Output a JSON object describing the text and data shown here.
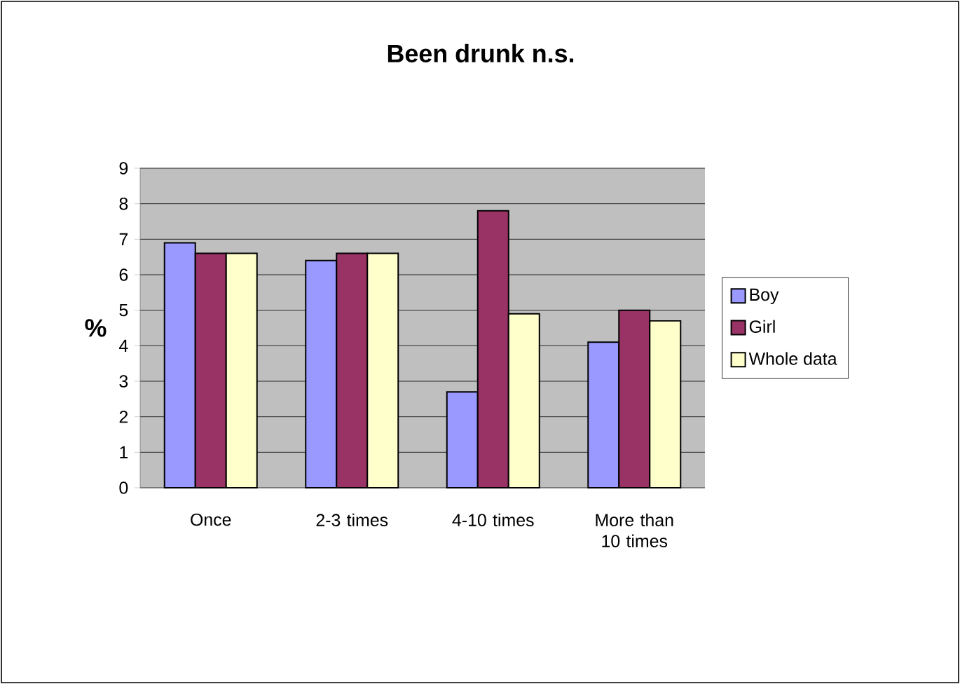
{
  "chart_data": {
    "type": "bar",
    "title": "Been drunk n.s.",
    "ylabel": "%",
    "categories": [
      "Once",
      "2-3 times",
      "4-10 times",
      "More than 10 times"
    ],
    "series": [
      {
        "name": "Boy",
        "color": "#9999ff",
        "values": [
          6.9,
          6.4,
          2.7,
          4.1
        ]
      },
      {
        "name": "Girl",
        "color": "#993366",
        "values": [
          6.6,
          6.6,
          7.8,
          5.0
        ]
      },
      {
        "name": "Whole data",
        "color": "#ffffcc",
        "values": [
          6.6,
          6.6,
          4.9,
          4.7
        ]
      }
    ],
    "ylim": [
      0,
      9
    ],
    "yticks": [
      0,
      1,
      2,
      3,
      4,
      5,
      6,
      7,
      8,
      9
    ],
    "grid": "y",
    "legend": "right"
  }
}
